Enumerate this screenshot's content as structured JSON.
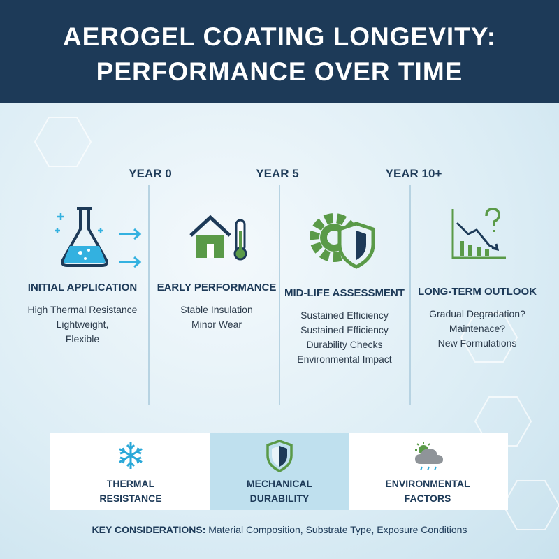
{
  "header": {
    "title_lines": [
      "AEROGEL COATING LONGEVITY:",
      "PERFORMANCE OVER TIME"
    ]
  },
  "timeline": {
    "years": [
      "YEAR 0",
      "YEAR 5",
      "YEAR 10+"
    ]
  },
  "stages": [
    {
      "title": "INITIAL APPLICATION",
      "lines": [
        "High Thermal Resistance",
        "Lightweight,",
        "Flexible"
      ]
    },
    {
      "title": "EARLY PERFORMANCE",
      "lines": [
        "Stable Insulation",
        "Minor Wear"
      ]
    },
    {
      "title": "MID-LIFE ASSESSMENT",
      "lines": [
        "Sustained Efficiency",
        "Sustained Efficiency",
        "Durability Checks",
        "Environmental Impact"
      ]
    },
    {
      "title": "LONG-TERM OUTLOOK",
      "lines": [
        "Gradual Degradation?",
        "Maintenace?",
        "New Formulations"
      ]
    }
  ],
  "factors": [
    {
      "lines": [
        "THERMAL",
        "RESISTANCE"
      ]
    },
    {
      "lines": [
        "MECHANICAL",
        "DURABILITY"
      ]
    },
    {
      "lines": [
        "ENVIRONMENTAL",
        "FACTORS"
      ]
    }
  ],
  "footer": {
    "label": "KEY CONSIDERATIONS:",
    "text": "Material Composition, Substrate Type, Exposure Conditions"
  }
}
